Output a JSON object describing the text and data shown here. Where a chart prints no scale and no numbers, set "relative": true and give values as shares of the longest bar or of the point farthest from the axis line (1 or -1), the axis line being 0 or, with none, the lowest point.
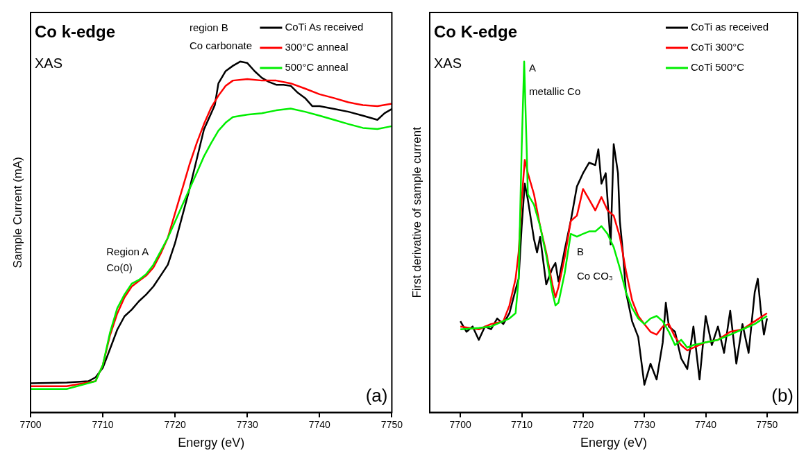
{
  "chart_data": [
    {
      "type": "line",
      "title": "Co k-edge",
      "subtitle": "XAS",
      "xlabel": "Energy (eV)",
      "ylabel": "Sample Current (mA)",
      "relative": true,
      "xlim": [
        7700,
        7750
      ],
      "xticks": [
        7700,
        7710,
        7720,
        7730,
        7740,
        7750
      ],
      "legend": "top right",
      "annotations": [
        "Region A",
        "Co(0)",
        "region B",
        "Co carbonate",
        "(a)"
      ],
      "series": [
        {
          "name": "CoTi As received",
          "color": "#000000",
          "x": [
            7700,
            7705,
            7708,
            7709,
            7710,
            7711,
            7712,
            7713,
            7714,
            7715,
            7716,
            7717,
            7718,
            7719,
            7720,
            7721,
            7722,
            7723,
            7724,
            7725,
            7725.5,
            7726,
            7727,
            7728,
            7729,
            7730,
            7731,
            7732,
            7733,
            7734,
            7735,
            7736,
            7737,
            7738,
            7739,
            7740,
            7742,
            7744,
            7746,
            7748,
            7749,
            7750
          ],
          "values": [
            0.083,
            0.085,
            0.089,
            0.1,
            0.127,
            0.181,
            0.236,
            0.274,
            0.293,
            0.317,
            0.336,
            0.359,
            0.39,
            0.421,
            0.483,
            0.56,
            0.637,
            0.722,
            0.807,
            0.853,
            0.876,
            0.938,
            0.973,
            0.988,
            1.0,
            0.996,
            0.973,
            0.954,
            0.942,
            0.934,
            0.934,
            0.931,
            0.911,
            0.896,
            0.873,
            0.873,
            0.865,
            0.857,
            0.846,
            0.834,
            0.853,
            0.865
          ]
        },
        {
          "name": "300°C anneal",
          "color": "#ff0000",
          "x": [
            7700,
            7705,
            7709,
            7710,
            7711,
            7712,
            7713,
            7714,
            7715,
            7716,
            7717,
            7718,
            7719,
            7720,
            7721,
            7722,
            7723,
            7724,
            7725,
            7726,
            7727,
            7728,
            7730,
            7732,
            7734,
            7736,
            7738,
            7740,
            7742,
            7744,
            7746,
            7748,
            7750
          ],
          "values": [
            0.075,
            0.075,
            0.089,
            0.135,
            0.22,
            0.282,
            0.328,
            0.359,
            0.375,
            0.39,
            0.413,
            0.452,
            0.498,
            0.568,
            0.637,
            0.707,
            0.768,
            0.822,
            0.869,
            0.903,
            0.931,
            0.946,
            0.95,
            0.946,
            0.946,
            0.938,
            0.923,
            0.907,
            0.896,
            0.884,
            0.876,
            0.873,
            0.88
          ]
        },
        {
          "name": "500°C anneal",
          "color": "#00ee00",
          "x": [
            7700,
            7705,
            7709,
            7710,
            7711,
            7712,
            7713,
            7714,
            7715,
            7716,
            7717,
            7718,
            7719,
            7720,
            7721,
            7722,
            7723,
            7724,
            7725,
            7726,
            7727,
            7728,
            7730,
            7732,
            7734,
            7736,
            7738,
            7740,
            7742,
            7744,
            7746,
            7748,
            7750
          ],
          "values": [
            0.067,
            0.067,
            0.089,
            0.135,
            0.228,
            0.297,
            0.336,
            0.367,
            0.378,
            0.394,
            0.421,
            0.459,
            0.498,
            0.544,
            0.591,
            0.637,
            0.683,
            0.73,
            0.768,
            0.803,
            0.826,
            0.842,
            0.849,
            0.853,
            0.861,
            0.866,
            0.857,
            0.846,
            0.834,
            0.822,
            0.811,
            0.808,
            0.816
          ]
        }
      ]
    },
    {
      "type": "line",
      "title": "Co K-edge",
      "subtitle": "XAS",
      "xlabel": "Energy (eV)",
      "ylabel": "First derivative of sample current",
      "relative": true,
      "xlim": [
        7695,
        7755
      ],
      "xticks": [
        7700,
        7710,
        7720,
        7730,
        7740,
        7750
      ],
      "legend": "top right",
      "annotations": [
        "A",
        "metallic Co",
        "B",
        "Co CO₃",
        "(b)"
      ],
      "series": [
        {
          "name": "CoTi as received",
          "color": "#000000",
          "x": [
            7700,
            7701,
            7702,
            7703,
            7704,
            7705,
            7706,
            7707,
            7708,
            7709,
            7709.5,
            7710,
            7710.5,
            7711,
            7712,
            7712.5,
            7713,
            7714,
            7715,
            7715.5,
            7716,
            7717,
            7718,
            7719,
            7720,
            7721,
            7722,
            7722.5,
            7723,
            7723.7,
            7724.5,
            7725,
            7725.7,
            7726,
            7726.5,
            7727,
            7728,
            7729,
            7730,
            7731,
            7732,
            7733,
            7733.5,
            7734,
            7735,
            7736,
            7737,
            7738,
            7739,
            7740,
            7741,
            7742,
            7743,
            7744,
            7745,
            7746,
            7747,
            7748,
            7748.5,
            7749,
            7749.5,
            7750
          ],
          "values": [
            0.26,
            0.23,
            0.245,
            0.207,
            0.245,
            0.237,
            0.268,
            0.252,
            0.283,
            0.35,
            0.381,
            0.531,
            0.652,
            0.607,
            0.494,
            0.456,
            0.501,
            0.365,
            0.411,
            0.426,
            0.373,
            0.463,
            0.546,
            0.644,
            0.682,
            0.712,
            0.705,
            0.75,
            0.652,
            0.682,
            0.479,
            0.765,
            0.682,
            0.546,
            0.456,
            0.343,
            0.26,
            0.215,
            0.079,
            0.139,
            0.094,
            0.2,
            0.313,
            0.245,
            0.23,
            0.154,
            0.124,
            0.245,
            0.094,
            0.275,
            0.192,
            0.245,
            0.17,
            0.29,
            0.139,
            0.252,
            0.17,
            0.343,
            0.381,
            0.29,
            0.222,
            0.268
          ]
        },
        {
          "name": "CoTi 300°C",
          "color": "#ff0000",
          "x": [
            7700,
            7703,
            7705,
            7707,
            7708,
            7709,
            7709.5,
            7710,
            7710.5,
            7711,
            7712,
            7713,
            7714,
            7715,
            7715.5,
            7716,
            7717,
            7718,
            7719,
            7720,
            7721,
            7722,
            7723,
            7724,
            7725,
            7726,
            7727,
            7728,
            7729,
            7730,
            7731,
            7732,
            7733,
            7734,
            7735,
            7736,
            7737,
            7738,
            7740,
            7742,
            7744,
            7746,
            7748,
            7750
          ],
          "values": [
            0.245,
            0.237,
            0.252,
            0.26,
            0.305,
            0.381,
            0.456,
            0.607,
            0.72,
            0.682,
            0.622,
            0.531,
            0.456,
            0.365,
            0.328,
            0.358,
            0.441,
            0.546,
            0.561,
            0.637,
            0.607,
            0.576,
            0.614,
            0.576,
            0.561,
            0.501,
            0.403,
            0.32,
            0.275,
            0.252,
            0.23,
            0.222,
            0.245,
            0.252,
            0.215,
            0.192,
            0.177,
            0.185,
            0.2,
            0.207,
            0.23,
            0.237,
            0.26,
            0.283
          ]
        },
        {
          "name": "CoTi 500°C",
          "color": "#00ee00",
          "x": [
            7700,
            7703,
            7705,
            7708,
            7709,
            7709.5,
            7710,
            7710.4,
            7710.8,
            7711,
            7712,
            7713,
            7714,
            7715,
            7715.5,
            7716,
            7717,
            7718,
            7719,
            7720,
            7721,
            7722,
            7723,
            7724,
            7725,
            7726,
            7727,
            7728,
            7729,
            7730,
            7731,
            7732,
            7733,
            7734,
            7735,
            7736,
            7737,
            7738,
            7740,
            7742,
            7744,
            7746,
            7748,
            7750
          ],
          "values": [
            0.237,
            0.241,
            0.245,
            0.268,
            0.283,
            0.381,
            0.757,
            1.0,
            0.757,
            0.622,
            0.592,
            0.531,
            0.448,
            0.343,
            0.305,
            0.313,
            0.396,
            0.509,
            0.501,
            0.509,
            0.516,
            0.516,
            0.531,
            0.509,
            0.471,
            0.411,
            0.343,
            0.298,
            0.268,
            0.252,
            0.268,
            0.275,
            0.26,
            0.23,
            0.192,
            0.207,
            0.185,
            0.192,
            0.2,
            0.207,
            0.222,
            0.237,
            0.252,
            0.275
          ]
        }
      ]
    }
  ]
}
